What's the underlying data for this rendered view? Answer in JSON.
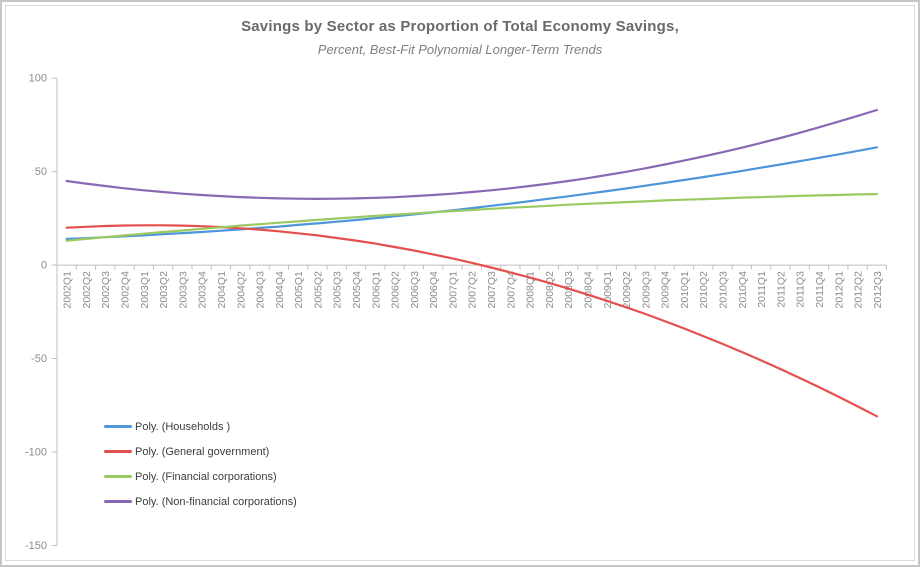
{
  "chart_data": {
    "type": "line",
    "title": "Savings by Sector as Proportion of Total Economy Savings,",
    "subtitle": "Percent, Best-Fit Polynomial Longer-Term Trends",
    "xlabel": "",
    "ylabel": "",
    "ylim": [
      -150,
      100
    ],
    "yticks": [
      100,
      50,
      0,
      -50,
      -100,
      -150
    ],
    "grid": false,
    "legend_position": "inside-bottom-left",
    "axis_color": "#bfbfbf",
    "tick_label_color": "#8c8c8c",
    "categories": [
      "2002Q1",
      "2002Q2",
      "2002Q3",
      "2002Q4",
      "2003Q1",
      "2003Q2",
      "2003Q3",
      "2003Q4",
      "2004Q1",
      "2004Q2",
      "2004Q3",
      "2004Q4",
      "2005Q1",
      "2005Q2",
      "2005Q3",
      "2005Q4",
      "2006Q1",
      "2006Q2",
      "2006Q3",
      "2006Q4",
      "2007Q1",
      "2007Q2",
      "2007Q3",
      "2007Q4",
      "2008Q1",
      "2008Q2",
      "2008Q3",
      "2008Q4",
      "2009Q1",
      "2009Q2",
      "2009Q3",
      "2009Q4",
      "2010Q1",
      "2010Q2",
      "2010Q3",
      "2010Q4",
      "2011Q1",
      "2011Q2",
      "2011Q3",
      "2011Q4",
      "2012Q1",
      "2012Q2",
      "2012Q3"
    ],
    "series": [
      {
        "name": "Poly. (Households )",
        "color": "#4e95d9",
        "values": [
          14.0,
          14.4,
          14.9,
          15.4,
          15.9,
          16.5,
          17.1,
          17.7,
          18.4,
          19.1,
          19.9,
          20.6,
          21.5,
          22.3,
          23.2,
          24.1,
          25.1,
          26.1,
          27.1,
          28.2,
          29.3,
          30.5,
          31.7,
          32.9,
          34.2,
          35.5,
          36.8,
          38.2,
          39.6,
          41.0,
          42.5,
          44.0,
          45.5,
          47.1,
          48.7,
          50.4,
          52.1,
          53.8,
          55.6,
          57.4,
          59.2,
          61.1,
          63.0
        ]
      },
      {
        "name": "Poly. (General government)",
        "color": "#e4504e",
        "values": [
          20.0,
          20.5,
          20.9,
          21.2,
          21.3,
          21.3,
          21.1,
          20.8,
          20.3,
          19.7,
          19.0,
          18.1,
          17.0,
          15.9,
          14.5,
          13.1,
          11.5,
          9.7,
          7.8,
          5.7,
          3.6,
          1.2,
          -1.3,
          -3.9,
          -6.6,
          -9.5,
          -12.6,
          -15.8,
          -19.1,
          -22.6,
          -26.2,
          -30.0,
          -33.9,
          -38.0,
          -42.2,
          -46.5,
          -51.0,
          -55.6,
          -60.4,
          -65.3,
          -70.4,
          -75.6,
          -80.9
        ]
      },
      {
        "name": "Poly. (Financial corporations)",
        "color": "#9bca62",
        "values": [
          13.0,
          14.0,
          14.9,
          15.9,
          16.8,
          17.7,
          18.5,
          19.4,
          20.2,
          21.1,
          21.9,
          22.7,
          23.4,
          24.2,
          24.9,
          25.6,
          26.3,
          27.0,
          27.6,
          28.3,
          28.9,
          29.5,
          30.1,
          30.7,
          31.2,
          31.7,
          32.3,
          32.8,
          33.2,
          33.7,
          34.1,
          34.6,
          35.0,
          35.3,
          35.7,
          36.1,
          36.4,
          36.7,
          37.0,
          37.3,
          37.5,
          37.8,
          38.0
        ]
      },
      {
        "name": "Poly. (Non-financial corporations)",
        "color": "#8969b3",
        "values": [
          45.0,
          43.6,
          42.3,
          41.1,
          40.0,
          39.1,
          38.2,
          37.5,
          36.9,
          36.4,
          36.0,
          35.7,
          35.5,
          35.4,
          35.5,
          35.7,
          36.0,
          36.3,
          36.9,
          37.5,
          38.2,
          39.1,
          40.0,
          41.1,
          42.3,
          43.6,
          45.0,
          46.5,
          48.2,
          49.9,
          51.8,
          53.8,
          55.9,
          58.1,
          60.4,
          62.8,
          65.4,
          68.0,
          70.8,
          73.7,
          76.7,
          79.8,
          83.0
        ]
      }
    ]
  }
}
